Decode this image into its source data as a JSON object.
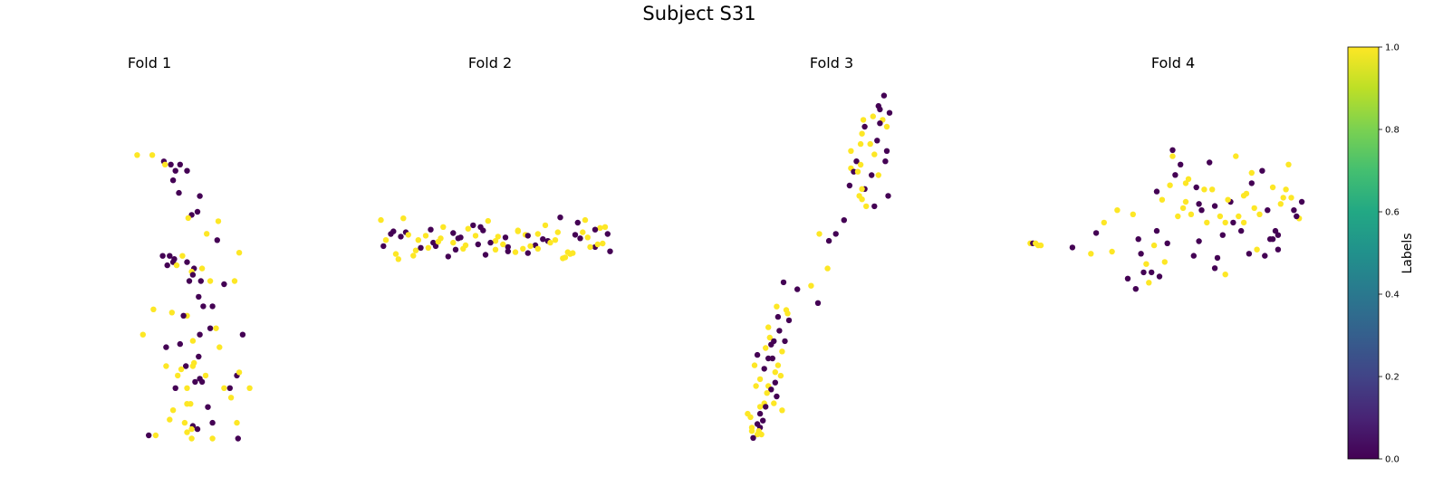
{
  "figure_title": "Subject S31",
  "colorbar": {
    "label": "Labels",
    "ticks": [
      "0.0",
      "0.2",
      "0.4",
      "0.6",
      "0.8",
      "1.0"
    ],
    "colormap": "viridis"
  },
  "colors": {
    "label_0": "#440154",
    "label_1": "#fde725",
    "text": "#000000"
  },
  "chart_data": [
    {
      "type": "scatter",
      "title": "Fold 1",
      "axes_visible": false,
      "color_by": "label",
      "points_x": [
        -0.02,
        0.11,
        0.21,
        0.27,
        0.35,
        0.22,
        0.31,
        0.41,
        0.29,
        0.5,
        0.34,
        0.52,
        0.45,
        0.42,
        0.68,
        0.58,
        0.67,
        0.2,
        0.26,
        0.3,
        0.37,
        0.29,
        0.32,
        0.24,
        0.41,
        0.47,
        0.45,
        0.46,
        0.43,
        0.54,
        0.53,
        0.61,
        0.86,
        0.82,
        0.73,
        0.51,
        0.55,
        0.63,
        0.12,
        0.03,
        0.28,
        0.41,
        0.38,
        0.61,
        0.66,
        0.89,
        0.52,
        0.46,
        0.69,
        0.51,
        0.35,
        0.23,
        0.4,
        0.47,
        0.36,
        0.33,
        0.23,
        0.84,
        0.46,
        0.57,
        0.86,
        0.54,
        0.52,
        0.48,
        0.31,
        0.41,
        0.78,
        0.73,
        0.95,
        0.79,
        0.44,
        0.41,
        0.59,
        0.29,
        0.39,
        0.46,
        0.45,
        0.26,
        0.5,
        0.41,
        0.63,
        0.84,
        0.63,
        0.85,
        0.08,
        0.14,
        0.45
      ],
      "points_y": [
        0.91,
        0.91,
        0.89,
        0.88,
        0.88,
        0.88,
        0.86,
        0.86,
        0.83,
        0.73,
        0.79,
        0.78,
        0.72,
        0.71,
        0.7,
        0.66,
        0.64,
        0.59,
        0.59,
        0.58,
        0.59,
        0.57,
        0.56,
        0.56,
        0.57,
        0.55,
        0.54,
        0.53,
        0.51,
        0.55,
        0.51,
        0.51,
        0.6,
        0.51,
        0.5,
        0.46,
        0.43,
        0.43,
        0.42,
        0.34,
        0.41,
        0.4,
        0.4,
        0.36,
        0.36,
        0.34,
        0.34,
        0.32,
        0.3,
        0.27,
        0.31,
        0.3,
        0.24,
        0.25,
        0.23,
        0.21,
        0.24,
        0.21,
        0.24,
        0.21,
        0.22,
        0.19,
        0.2,
        0.19,
        0.17,
        0.17,
        0.17,
        0.17,
        0.17,
        0.14,
        0.12,
        0.12,
        0.11,
        0.1,
        0.06,
        0.05,
        0.04,
        0.07,
        0.04,
        0.03,
        0.06,
        0.06,
        0.01,
        0.01,
        0.02,
        0.02,
        0.01
      ],
      "labels": [
        1,
        1,
        0,
        0,
        0,
        1,
        0,
        0,
        0,
        0,
        0,
        0,
        0,
        1,
        1,
        1,
        0,
        0,
        0,
        0,
        1,
        0,
        1,
        0,
        0,
        0,
        1,
        0,
        0,
        1,
        0,
        1,
        1,
        1,
        0,
        0,
        0,
        0,
        1,
        1,
        1,
        1,
        0,
        0,
        1,
        0,
        0,
        1,
        1,
        0,
        0,
        0,
        0,
        1,
        1,
        1,
        1,
        0,
        1,
        1,
        1,
        0,
        0,
        0,
        0,
        1,
        0,
        1,
        1,
        1,
        1,
        1,
        0,
        1,
        1,
        0,
        1,
        1,
        0,
        1,
        0,
        1,
        1,
        0,
        0,
        1,
        1
      ]
    },
    {
      "type": "scatter",
      "title": "Fold 2",
      "axes_visible": false,
      "color_by": "label",
      "points_x": [
        0.06,
        0.1,
        0.15,
        0.21,
        0.26,
        0.3,
        0.35,
        0.39,
        0.43,
        0.47,
        0.52,
        0.56,
        0.6,
        0.64,
        0.68,
        0.72,
        0.76,
        0.8,
        0.84,
        0.88,
        0.92,
        0.96,
        0.07,
        0.12,
        0.16,
        0.2,
        0.24,
        0.28,
        0.33,
        0.37,
        0.41,
        0.45,
        0.49,
        0.53,
        0.57,
        0.61,
        0.65,
        0.69,
        0.73,
        0.77,
        0.81,
        0.85,
        0.89,
        0.93,
        0.97,
        0.08,
        0.13,
        0.17,
        0.22,
        0.27,
        0.31,
        0.36,
        0.4,
        0.44,
        0.48,
        0.52,
        0.57,
        0.61,
        0.65,
        0.69,
        0.74,
        0.78,
        0.82,
        0.86,
        0.9,
        0.94,
        0.98,
        0.11,
        0.19,
        0.29,
        0.38,
        0.46,
        0.55,
        0.63,
        0.71,
        0.79,
        0.87,
        0.95,
        0.14,
        0.25,
        0.35,
        0.5,
        0.66,
        0.83,
        0.92
      ],
      "points_y": [
        0.78,
        0.62,
        0.8,
        0.55,
        0.67,
        0.57,
        0.52,
        0.45,
        0.72,
        0.66,
        0.44,
        0.58,
        0.41,
        0.61,
        0.49,
        0.72,
        0.55,
        0.35,
        0.61,
        0.78,
        0.47,
        0.7,
        0.48,
        0.39,
        0.64,
        0.43,
        0.6,
        0.48,
        0.36,
        0.57,
        0.68,
        0.5,
        0.77,
        0.59,
        0.42,
        0.65,
        0.6,
        0.45,
        0.54,
        0.64,
        0.41,
        0.75,
        0.58,
        0.5,
        0.62,
        0.55,
        0.33,
        0.61,
        0.46,
        0.52,
        0.7,
        0.44,
        0.49,
        0.6,
        0.38,
        0.54,
        0.47,
        0.66,
        0.4,
        0.62,
        0.52,
        0.81,
        0.39,
        0.57,
        0.47,
        0.69,
        0.42,
        0.65,
        0.37,
        0.53,
        0.58,
        0.7,
        0.5,
        0.45,
        0.56,
        0.34,
        0.64,
        0.51,
        0.59,
        0.46,
        0.63,
        0.52,
        0.48,
        0.4,
        0.67
      ],
      "labels": [
        1,
        0,
        1,
        1,
        0,
        1,
        1,
        1,
        0,
        0,
        1,
        0,
        1,
        1,
        0,
        1,
        1,
        1,
        0,
        1,
        0,
        1,
        0,
        1,
        0,
        1,
        1,
        0,
        0,
        0,
        1,
        0,
        1,
        1,
        0,
        1,
        0,
        1,
        0,
        1,
        1,
        0,
        1,
        1,
        0,
        1,
        1,
        1,
        0,
        0,
        1,
        0,
        1,
        1,
        0,
        1,
        0,
        1,
        0,
        1,
        1,
        0,
        1,
        0,
        1,
        1,
        0,
        0,
        1,
        1,
        0,
        0,
        1,
        1,
        0,
        1,
        1,
        1,
        0,
        1,
        0,
        0,
        1,
        1,
        0
      ]
    },
    {
      "type": "scatter",
      "title": "Fold 3",
      "axes_visible": false,
      "color_by": "label",
      "points_x": [
        0.96,
        0.92,
        0.93,
        1.0,
        0.81,
        0.88,
        0.95,
        0.93,
        0.82,
        0.8,
        0.98,
        0.91,
        0.79,
        0.86,
        0.98,
        0.72,
        0.89,
        0.76,
        0.79,
        0.97,
        0.72,
        0.74,
        0.77,
        0.87,
        0.92,
        0.82,
        0.8,
        0.71,
        0.78,
        0.8,
        0.99,
        0.83,
        0.89,
        0.67,
        0.61,
        0.56,
        0.49,
        0.55,
        0.43,
        0.33,
        0.48,
        0.18,
        0.26,
        0.19,
        0.27,
        0.12,
        0.2,
        0.13,
        0.16,
        0.24,
        0.1,
        0.22,
        0.04,
        0.12,
        0.15,
        0.19,
        0.02,
        0.09,
        0.21,
        0.06,
        0.17,
        0.03,
        0.12,
        0.14,
        0.18,
        0.16,
        0.09,
        0.06,
        0.1,
        0.22,
        -0.03,
        0.06,
        -0.01,
        0.08,
        0.0,
        0.06,
        0.05,
        0.04,
        0.07,
        0.01,
        0.04,
        0.0,
        0.11,
        0.25,
        0.14,
        0.23,
        0.17
      ],
      "points_y": [
        0.98,
        0.95,
        0.94,
        0.93,
        0.91,
        0.92,
        0.91,
        0.9,
        0.89,
        0.87,
        0.89,
        0.85,
        0.84,
        0.84,
        0.82,
        0.82,
        0.81,
        0.79,
        0.78,
        0.79,
        0.77,
        0.76,
        0.76,
        0.75,
        0.75,
        0.71,
        0.71,
        0.72,
        0.69,
        0.68,
        0.69,
        0.66,
        0.66,
        0.62,
        0.58,
        0.56,
        0.58,
        0.48,
        0.43,
        0.42,
        0.38,
        0.37,
        0.35,
        0.34,
        0.33,
        0.31,
        0.3,
        0.28,
        0.27,
        0.27,
        0.25,
        0.24,
        0.23,
        0.22,
        0.22,
        0.2,
        0.2,
        0.19,
        0.17,
        0.16,
        0.15,
        0.14,
        0.14,
        0.13,
        0.11,
        0.09,
        0.09,
        0.08,
        0.08,
        0.07,
        0.06,
        0.06,
        0.05,
        0.04,
        0.02,
        0.02,
        0.01,
        0.0,
        0.0,
        -0.01,
        0.03,
        0.01,
        0.12,
        0.36,
        0.26,
        0.44,
        0.18
      ],
      "labels": [
        0,
        0,
        0,
        0,
        1,
        1,
        1,
        0,
        0,
        1,
        1,
        0,
        1,
        1,
        0,
        1,
        1,
        0,
        1,
        0,
        1,
        0,
        1,
        0,
        1,
        0,
        1,
        0,
        1,
        1,
        0,
        1,
        0,
        0,
        0,
        0,
        1,
        1,
        1,
        0,
        0,
        1,
        1,
        0,
        0,
        1,
        0,
        1,
        0,
        0,
        1,
        1,
        0,
        0,
        0,
        1,
        1,
        0,
        1,
        1,
        0,
        1,
        1,
        0,
        0,
        1,
        1,
        1,
        0,
        1,
        1,
        0,
        1,
        0,
        1,
        0,
        1,
        1,
        1,
        0,
        0,
        1,
        1,
        1,
        0,
        0,
        1
      ]
    },
    {
      "type": "scatter",
      "title": "Fold 4",
      "axes_visible": false,
      "color_by": "label",
      "points_x": [
        -0.04,
        -0.03,
        -0.02,
        -0.01,
        0.0,
        0.12,
        0.19,
        0.21,
        0.24,
        0.27,
        0.29,
        0.33,
        0.36,
        0.38,
        0.4,
        0.42,
        0.44,
        0.46,
        0.48,
        0.5,
        0.52,
        0.54,
        0.56,
        0.58,
        0.6,
        0.62,
        0.64,
        0.66,
        0.68,
        0.7,
        0.72,
        0.74,
        0.76,
        0.78,
        0.8,
        0.82,
        0.84,
        0.86,
        0.88,
        0.9,
        0.92,
        0.94,
        0.96,
        0.98,
        0.35,
        0.43,
        0.47,
        0.53,
        0.57,
        0.61,
        0.65,
        0.69,
        0.73,
        0.77,
        0.81,
        0.85,
        0.89,
        0.93,
        0.97,
        0.37,
        0.39,
        0.45,
        0.49,
        0.51,
        0.55,
        0.59,
        0.63,
        0.67,
        0.71,
        0.75,
        0.79,
        0.83,
        0.87,
        0.91,
        0.95,
        0.99,
        0.41,
        0.5,
        0.6,
        0.7,
        0.8,
        0.9,
        0.44,
        0.55,
        0.66,
        0.77,
        0.88
      ],
      "points_y": [
        0.42,
        0.42,
        0.42,
        0.41,
        0.41,
        0.4,
        0.37,
        0.47,
        0.52,
        0.38,
        0.58,
        0.25,
        0.2,
        0.37,
        0.32,
        0.28,
        0.48,
        0.63,
        0.42,
        0.87,
        0.55,
        0.59,
        0.73,
        0.36,
        0.61,
        0.68,
        0.81,
        0.3,
        0.55,
        0.52,
        0.62,
        0.84,
        0.48,
        0.66,
        0.71,
        0.39,
        0.77,
        0.58,
        0.69,
        0.46,
        0.64,
        0.8,
        0.58,
        0.54,
        0.56,
        0.41,
        0.33,
        0.8,
        0.56,
        0.58,
        0.68,
        0.46,
        0.52,
        0.65,
        0.59,
        0.36,
        0.48,
        0.68,
        0.55,
        0.44,
        0.28,
        0.26,
        0.7,
        0.75,
        0.62,
        0.69,
        0.52,
        0.35,
        0.63,
        0.55,
        0.37,
        0.56,
        0.44,
        0.61,
        0.64,
        0.62,
        0.23,
        0.84,
        0.43,
        0.27,
        0.76,
        0.39,
        0.67,
        0.71,
        0.6,
        0.52,
        0.44
      ],
      "labels": [
        1,
        0,
        1,
        1,
        1,
        0,
        1,
        0,
        1,
        1,
        1,
        0,
        0,
        0,
        1,
        0,
        0,
        1,
        0,
        0,
        1,
        1,
        1,
        0,
        0,
        1,
        0,
        0,
        1,
        1,
        0,
        1,
        0,
        1,
        0,
        1,
        0,
        0,
        1,
        0,
        1,
        1,
        0,
        1,
        1,
        1,
        1,
        0,
        1,
        0,
        1,
        0,
        0,
        1,
        1,
        0,
        0,
        1,
        0,
        0,
        0,
        0,
        1,
        0,
        1,
        0,
        1,
        0,
        1,
        1,
        0,
        1,
        0,
        1,
        1,
        0,
        1,
        1,
        0,
        1,
        1,
        0,
        0,
        1,
        0,
        1,
        0
      ]
    }
  ]
}
